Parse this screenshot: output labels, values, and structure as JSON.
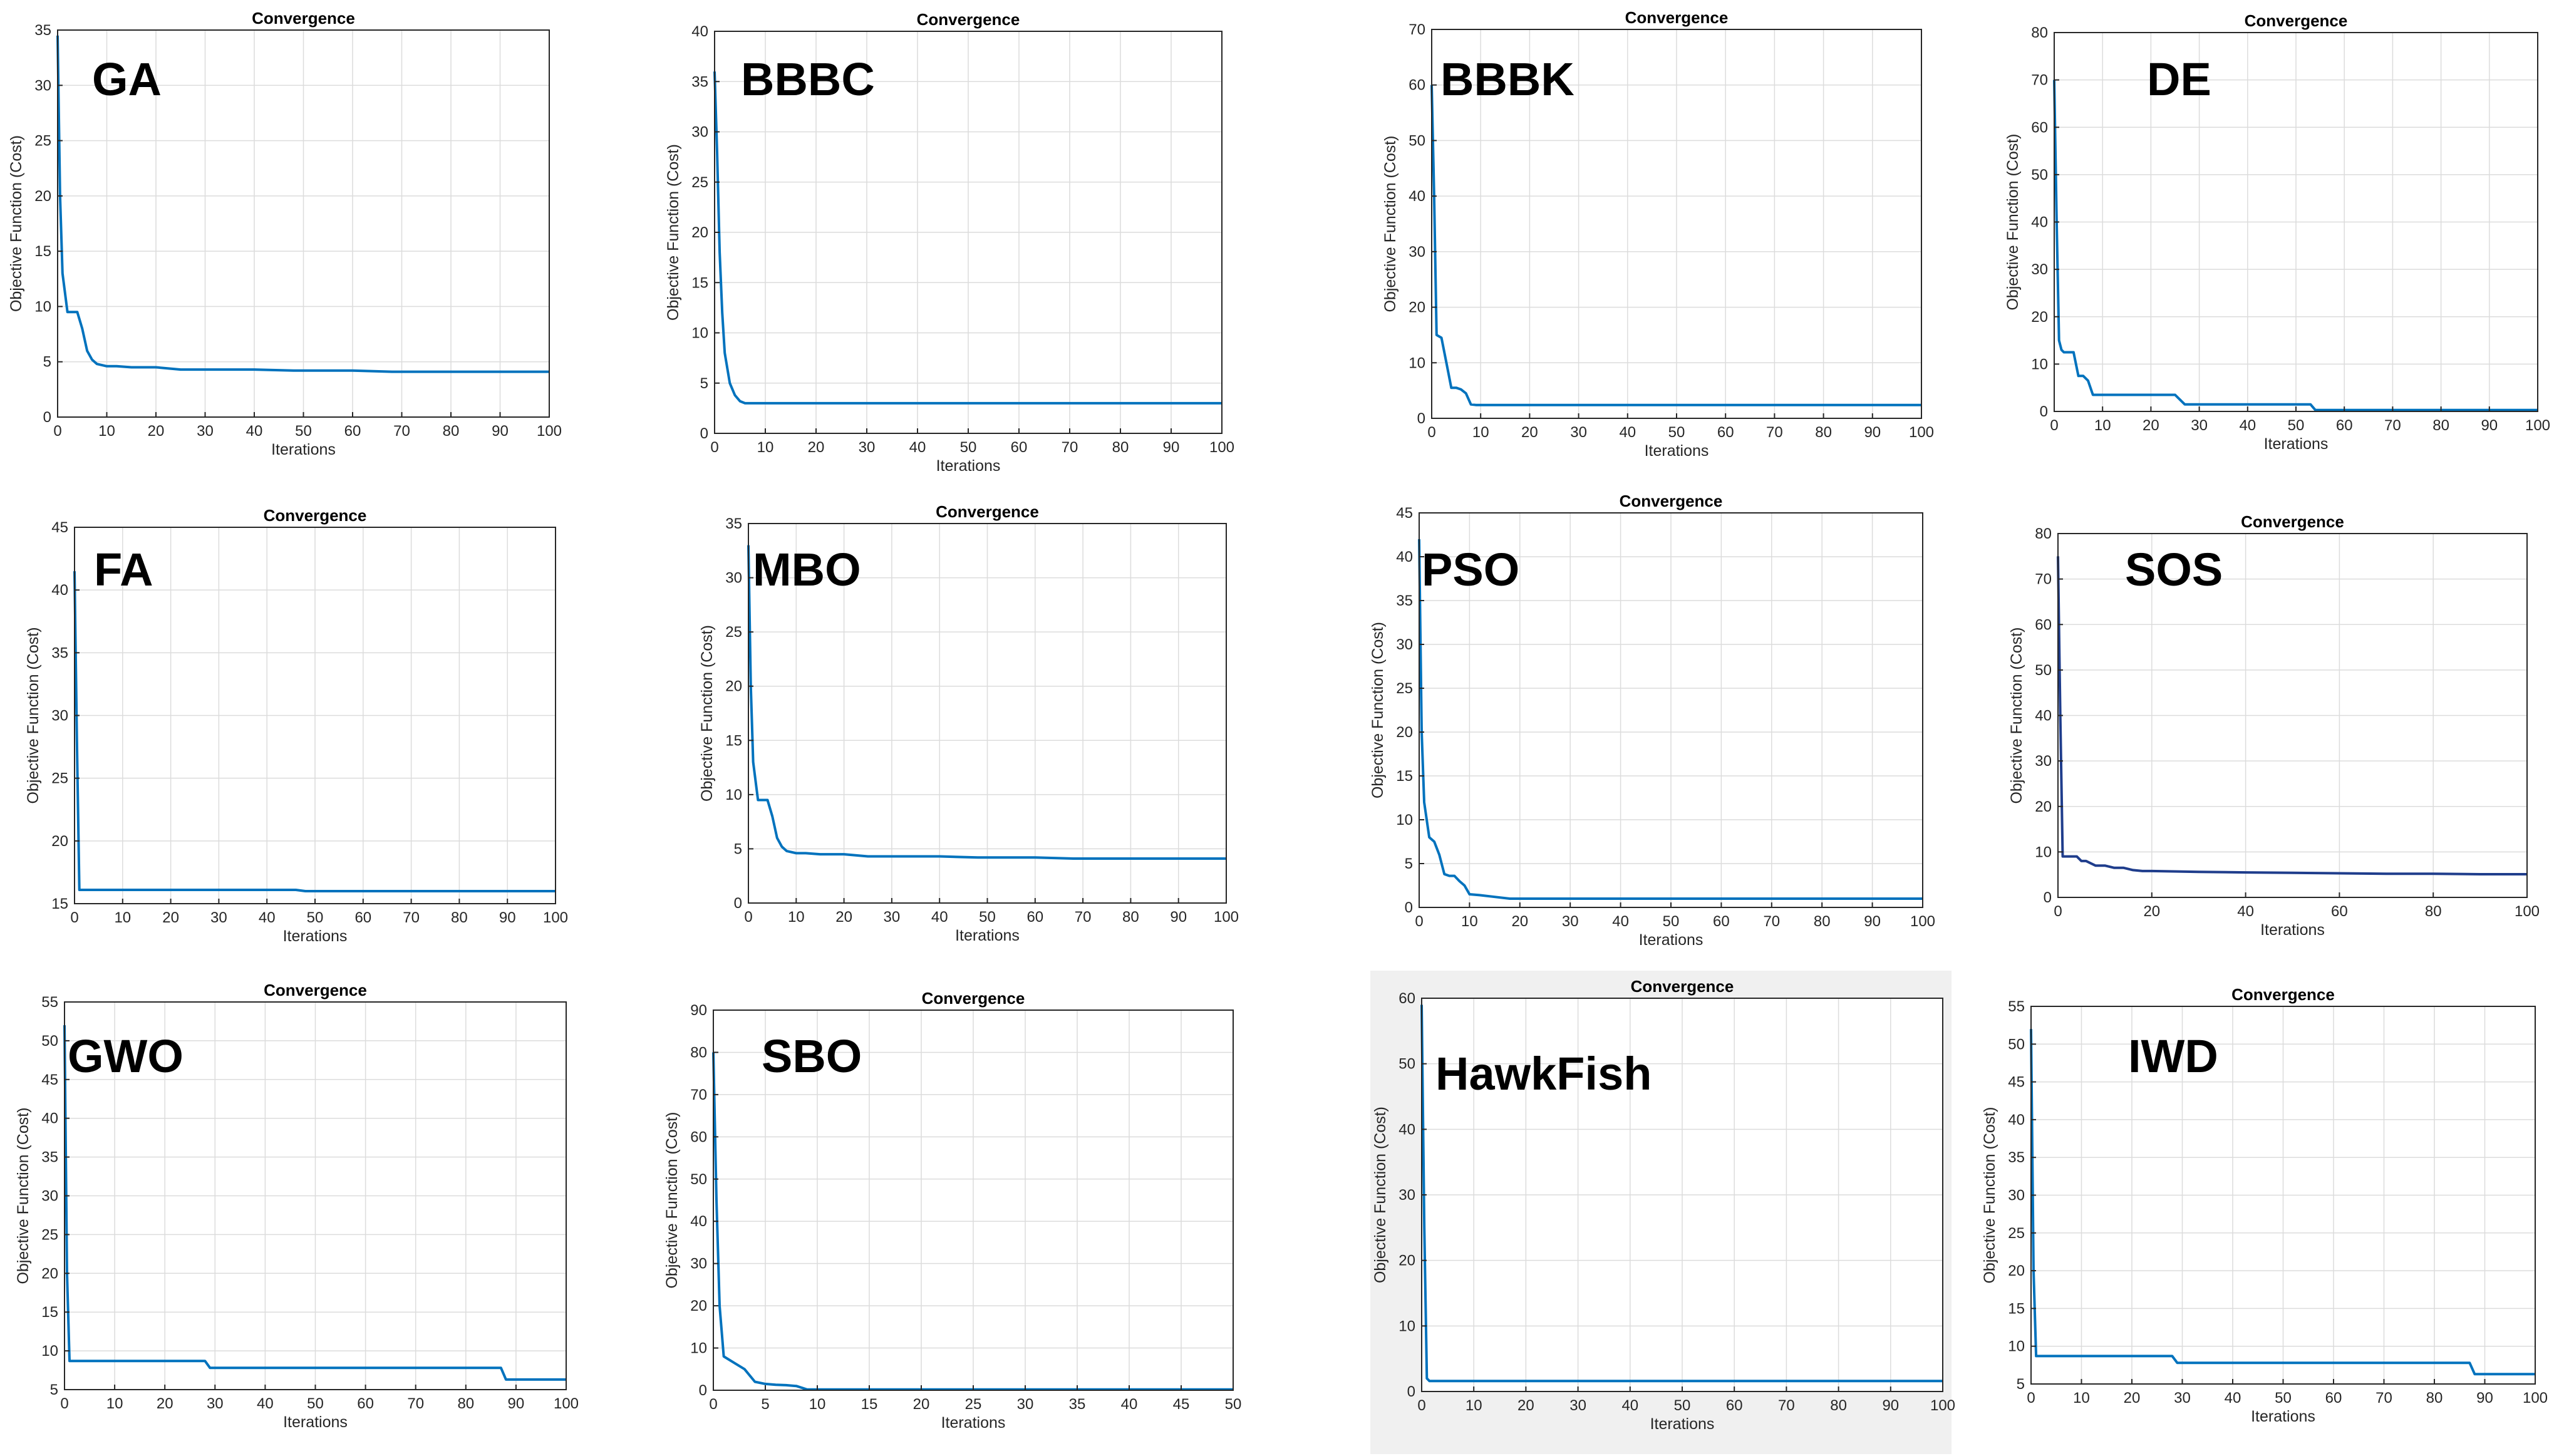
{
  "figure": {
    "line_color": "#0072bd",
    "dark_line_color": "#1f3d8c",
    "highlight_background": "#f0f0f0"
  },
  "chart_data": [
    {
      "id": "GA",
      "type": "line",
      "label": "GA",
      "title": "Convergence",
      "xlabel": "Iterations",
      "ylabel": "Objective Function (Cost)",
      "xlim": [
        0,
        100
      ],
      "ylim": [
        0,
        35
      ],
      "xticks": [
        0,
        10,
        20,
        30,
        40,
        50,
        60,
        70,
        80,
        90,
        100
      ],
      "yticks": [
        0,
        5,
        10,
        15,
        20,
        25,
        30,
        35
      ],
      "x": [
        0,
        0.5,
        1,
        2,
        3,
        4,
        5,
        6,
        7,
        8,
        10,
        12,
        15,
        20,
        25,
        30,
        40,
        48,
        60,
        68,
        80,
        90,
        100
      ],
      "y": [
        34.5,
        20,
        13,
        9.5,
        9.5,
        9.5,
        8,
        6,
        5.2,
        4.8,
        4.6,
        4.6,
        4.5,
        4.5,
        4.3,
        4.3,
        4.3,
        4.2,
        4.2,
        4.1,
        4.1,
        4.1,
        4.1
      ]
    },
    {
      "id": "BBBC",
      "type": "line",
      "label": "BBBC",
      "title": "Convergence",
      "xlabel": "Iterations",
      "ylabel": "Objective Function (Cost)",
      "xlim": [
        0,
        100
      ],
      "ylim": [
        0,
        40
      ],
      "xticks": [
        0,
        10,
        20,
        30,
        40,
        50,
        60,
        70,
        80,
        90,
        100
      ],
      "yticks": [
        0,
        5,
        10,
        15,
        20,
        25,
        30,
        35,
        40
      ],
      "x": [
        0,
        0.5,
        1,
        1.5,
        2,
        3,
        4,
        5,
        6,
        8,
        100
      ],
      "y": [
        36,
        28,
        18,
        12,
        8,
        5,
        3.8,
        3.2,
        3,
        3,
        3
      ]
    },
    {
      "id": "BBBK",
      "type": "line",
      "label": "BBBK",
      "title": "Convergence",
      "xlabel": "Iterations",
      "ylabel": "Objective Function (Cost)",
      "xlim": [
        0,
        100
      ],
      "ylim": [
        0,
        70
      ],
      "xticks": [
        0,
        10,
        20,
        30,
        40,
        50,
        60,
        70,
        80,
        90,
        100
      ],
      "yticks": [
        0,
        10,
        20,
        30,
        40,
        50,
        60,
        70
      ],
      "x": [
        0,
        0.5,
        1,
        2,
        3,
        4,
        5,
        6,
        7,
        8,
        9,
        100
      ],
      "y": [
        60,
        40,
        15,
        14.5,
        10,
        5.5,
        5.5,
        5.2,
        4.5,
        2.5,
        2.4,
        2.4
      ]
    },
    {
      "id": "DE",
      "type": "line",
      "label": "DE",
      "title": "Convergence",
      "xlabel": "Iterations",
      "ylabel": "Objective Function (Cost)",
      "xlim": [
        0,
        100
      ],
      "ylim": [
        0,
        80
      ],
      "xticks": [
        0,
        10,
        20,
        30,
        40,
        50,
        60,
        70,
        80,
        90,
        100
      ],
      "yticks": [
        0,
        10,
        20,
        30,
        40,
        50,
        60,
        70,
        80
      ],
      "x": [
        0,
        0.5,
        1,
        1.5,
        2,
        3,
        4,
        5,
        6,
        7,
        8,
        10,
        25,
        27,
        40,
        53,
        54,
        100
      ],
      "y": [
        70,
        40,
        15,
        13,
        12.5,
        12.5,
        12.5,
        7.5,
        7.5,
        6.5,
        3.5,
        3.5,
        3.5,
        1.5,
        1.5,
        1.5,
        0.3,
        0.3
      ]
    },
    {
      "id": "FA",
      "type": "line",
      "label": "FA",
      "title": "Convergence",
      "xlabel": "Iterations",
      "ylabel": "Objective Function (Cost)",
      "xlim": [
        0,
        100
      ],
      "ylim": [
        15,
        45
      ],
      "xticks": [
        0,
        10,
        20,
        30,
        40,
        50,
        60,
        70,
        80,
        90,
        100
      ],
      "yticks": [
        15,
        20,
        25,
        30,
        35,
        40,
        45
      ],
      "x": [
        0,
        0.5,
        1,
        2,
        46,
        48,
        100
      ],
      "y": [
        41.5,
        28,
        16.1,
        16.1,
        16.1,
        16,
        16
      ]
    },
    {
      "id": "MBO",
      "type": "line",
      "label": "MBO",
      "title": "Convergence",
      "xlabel": "Iterations",
      "ylabel": "Objective Function (Cost)",
      "xlim": [
        0,
        100
      ],
      "ylim": [
        0,
        35
      ],
      "xticks": [
        0,
        10,
        20,
        30,
        40,
        50,
        60,
        70,
        80,
        90,
        100
      ],
      "yticks": [
        0,
        5,
        10,
        15,
        20,
        25,
        30,
        35
      ],
      "x": [
        0,
        0.5,
        1,
        2,
        3,
        4,
        5,
        6,
        7,
        8,
        10,
        12,
        15,
        20,
        25,
        30,
        40,
        48,
        60,
        68,
        80,
        90,
        100
      ],
      "y": [
        33,
        20,
        13,
        9.5,
        9.5,
        9.5,
        8,
        6,
        5.2,
        4.8,
        4.6,
        4.6,
        4.5,
        4.5,
        4.3,
        4.3,
        4.3,
        4.2,
        4.2,
        4.1,
        4.1,
        4.1,
        4.1
      ]
    },
    {
      "id": "PSO",
      "type": "line",
      "label": "PSO",
      "title": "Convergence",
      "xlabel": "Iterations",
      "ylabel": "Objective Function (Cost)",
      "xlim": [
        0,
        100
      ],
      "ylim": [
        0,
        45
      ],
      "xticks": [
        0,
        10,
        20,
        30,
        40,
        50,
        60,
        70,
        80,
        90,
        100
      ],
      "yticks": [
        0,
        5,
        10,
        15,
        20,
        25,
        30,
        35,
        40,
        45
      ],
      "x": [
        0,
        0.5,
        1,
        2,
        3,
        4,
        5,
        6,
        7,
        8,
        9,
        10,
        12,
        15,
        18,
        20,
        100
      ],
      "y": [
        42,
        20,
        12,
        8,
        7.5,
        6,
        3.8,
        3.6,
        3.6,
        3,
        2.5,
        1.5,
        1.4,
        1.2,
        1,
        1,
        1
      ]
    },
    {
      "id": "SOS",
      "type": "line",
      "label": "SOS",
      "title": "Convergence",
      "xlabel": "Iterations",
      "ylabel": "Objective Function (Cost)",
      "xlim": [
        0,
        100
      ],
      "ylim": [
        0,
        80
      ],
      "xticks": [
        0,
        20,
        40,
        60,
        80,
        100
      ],
      "yticks": [
        0,
        10,
        20,
        30,
        40,
        50,
        60,
        70,
        80
      ],
      "x": [
        0,
        0.5,
        1,
        2,
        4,
        5,
        6,
        8,
        10,
        12,
        14,
        16,
        18,
        20,
        30,
        40,
        50,
        60,
        70,
        80,
        90,
        100
      ],
      "y": [
        75,
        40,
        9,
        9,
        9,
        8,
        8,
        7,
        7,
        6.5,
        6.5,
        6,
        5.8,
        5.8,
        5.6,
        5.5,
        5.4,
        5.3,
        5.2,
        5.2,
        5.1,
        5.1
      ]
    },
    {
      "id": "GWO",
      "type": "line",
      "label": "GWO",
      "title": "Convergence",
      "xlabel": "Iterations",
      "ylabel": "Objective Function (Cost)",
      "xlim": [
        0,
        100
      ],
      "ylim": [
        5,
        55
      ],
      "xticks": [
        0,
        10,
        20,
        30,
        40,
        50,
        60,
        70,
        80,
        90,
        100
      ],
      "yticks": [
        5,
        10,
        15,
        20,
        25,
        30,
        35,
        40,
        45,
        50,
        55
      ],
      "x": [
        0,
        0.5,
        1,
        2,
        28,
        29,
        87,
        88,
        100
      ],
      "y": [
        52,
        20,
        8.7,
        8.7,
        8.7,
        7.8,
        7.8,
        6.3,
        6.3
      ]
    },
    {
      "id": "SBO",
      "type": "line",
      "label": "SBO",
      "title": "Convergence",
      "xlabel": "Iterations",
      "ylabel": "Objective Function (Cost)",
      "xlim": [
        0,
        50
      ],
      "ylim": [
        0,
        90
      ],
      "xticks": [
        0,
        5,
        10,
        15,
        20,
        25,
        30,
        35,
        40,
        45,
        50
      ],
      "yticks": [
        0,
        10,
        20,
        30,
        40,
        50,
        60,
        70,
        80,
        90
      ],
      "x": [
        0,
        0.3,
        0.6,
        1,
        2,
        3,
        4,
        5,
        6,
        7,
        8,
        9,
        50
      ],
      "y": [
        80,
        45,
        20,
        8,
        6.5,
        5,
        2,
        1.5,
        1.3,
        1.2,
        1,
        0.2,
        0.2
      ]
    },
    {
      "id": "HawkFish",
      "type": "line",
      "label": "HawkFish",
      "title": "Convergence",
      "xlabel": "Iterations",
      "ylabel": "Objective Function (Cost)",
      "xlim": [
        0,
        100
      ],
      "ylim": [
        0,
        60
      ],
      "xticks": [
        0,
        10,
        20,
        30,
        40,
        50,
        60,
        70,
        80,
        90,
        100
      ],
      "yticks": [
        0,
        10,
        20,
        30,
        40,
        50,
        60
      ],
      "x": [
        0,
        0.5,
        1,
        1.5,
        100
      ],
      "y": [
        59,
        25,
        2,
        1.6,
        1.6
      ]
    },
    {
      "id": "IWD",
      "type": "line",
      "label": "IWD",
      "title": "Convergence",
      "xlabel": "Iterations",
      "ylabel": "Objective Function (Cost)",
      "xlim": [
        0,
        100
      ],
      "ylim": [
        5,
        55
      ],
      "xticks": [
        0,
        10,
        20,
        30,
        40,
        50,
        60,
        70,
        80,
        90,
        100
      ],
      "yticks": [
        5,
        10,
        15,
        20,
        25,
        30,
        35,
        40,
        45,
        50,
        55
      ],
      "x": [
        0,
        0.5,
        1,
        2,
        28,
        29,
        87,
        88,
        100
      ],
      "y": [
        52,
        20,
        8.7,
        8.7,
        8.7,
        7.8,
        7.8,
        6.3,
        6.3
      ]
    }
  ]
}
